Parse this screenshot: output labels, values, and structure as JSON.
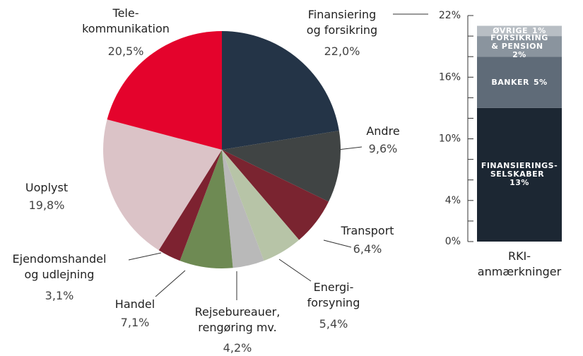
{
  "chart_data": [
    {
      "type": "pie",
      "categories": [
        "Finansiering\nog forsikring",
        "Andre",
        "Transport",
        "Energi-\nforsyning",
        "Rejsebureauer,\nrengøring mv.",
        "Handel",
        "Ejendomshandel\nog udlejning",
        "Uoplyst",
        "Tele-\nkommunikation"
      ],
      "values": [
        22.0,
        9.6,
        6.4,
        5.4,
        4.2,
        7.1,
        3.1,
        19.8,
        20.5
      ],
      "value_labels": [
        "22,0%",
        "9,6%",
        "6,4%",
        "5,4%",
        "4,2%",
        "7,1%",
        "3,1%",
        "19,8%",
        "20,5%"
      ],
      "colors": [
        "#243447",
        "#404444",
        "#7a2430",
        "#b7c4a7",
        "#b9b9b9",
        "#6e8a53",
        "#7d2230",
        "#dbc3c7",
        "#e4032c"
      ]
    },
    {
      "type": "stacked_bar",
      "categories": [
        "RKI-\nanmærkninger"
      ],
      "series": [
        {
          "name": "FINANSIERINGS-\nSELSKABER",
          "color": "#1c2733",
          "values": [
            13
          ],
          "value_labels": [
            "13%"
          ]
        },
        {
          "name": "BANKER",
          "color": "#5f6b78",
          "values": [
            5
          ],
          "value_labels": [
            "5%"
          ]
        },
        {
          "name": "FORSIKRING\n& PENSION",
          "color": "#8a949e",
          "values": [
            2
          ],
          "value_labels": [
            "2%"
          ]
        },
        {
          "name": "ØVRIGE",
          "color": "#b8bec4",
          "values": [
            1
          ],
          "value_labels": [
            "1%"
          ]
        }
      ],
      "ylim": [
        0,
        22
      ],
      "yticks": [
        {
          "value": 0,
          "label": "0%"
        },
        {
          "value": 4,
          "label": "4%"
        },
        {
          "value": 10,
          "label": "10%"
        },
        {
          "value": 16,
          "label": "16%"
        },
        {
          "value": 22,
          "label": "22%"
        }
      ],
      "minor_yticks": [
        2,
        6,
        8,
        12,
        14,
        18,
        20
      ]
    }
  ]
}
